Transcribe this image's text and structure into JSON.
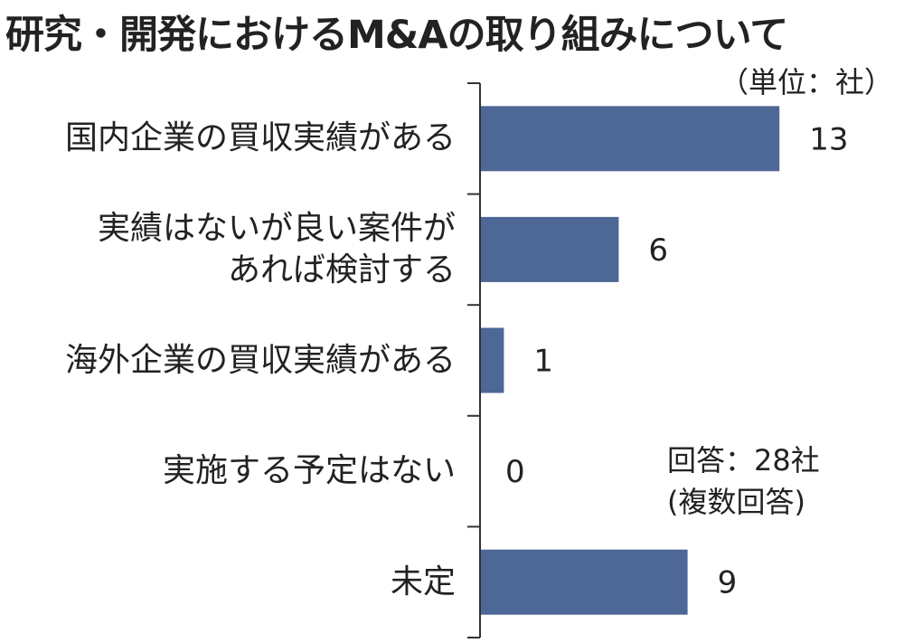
{
  "title": "研究・開発におけるM&Aの取り組みについて",
  "unit_label": "（単位：社）",
  "note": {
    "line1": "回答：28社",
    "line2": "(複数回答)"
  },
  "colors": {
    "bar": "#4d6796",
    "axis": "#333333"
  },
  "chart_data": {
    "type": "bar",
    "orientation": "horizontal",
    "title": "研究・開発におけるM&Aの取り組みについて",
    "unit": "社",
    "categories": [
      [
        "国内企業の買収実績がある"
      ],
      [
        "実績はないが良い案件が",
        "あれば検討する"
      ],
      [
        "海外企業の買収実績がある"
      ],
      [
        "実施する予定はない"
      ],
      [
        "未定"
      ]
    ],
    "values": [
      13,
      6,
      1,
      0,
      9
    ],
    "xlim": [
      0,
      13
    ],
    "grid": false,
    "data_labels": true
  }
}
